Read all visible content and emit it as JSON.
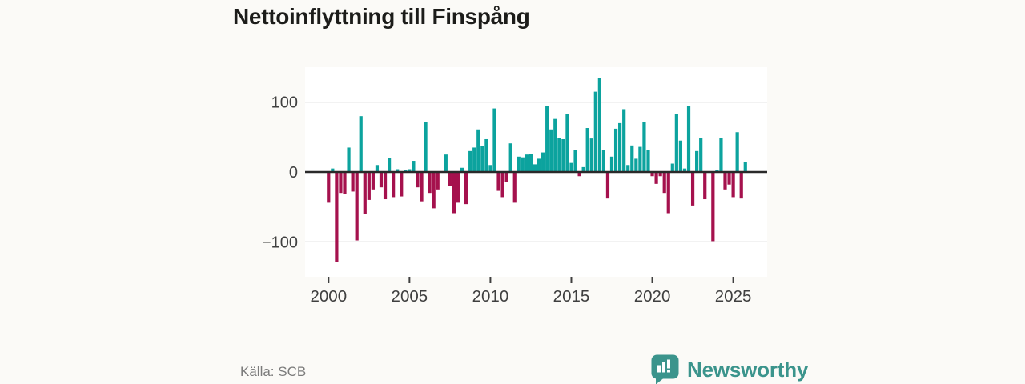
{
  "title": "Nettoinflyttning till Finspång",
  "source_label": "Källa: SCB",
  "brand": {
    "name": "Newsworthy",
    "icon": "bar-chart-speech-bubble-icon",
    "color": "#3b948c"
  },
  "colors": {
    "positive_bar": "#0ca39e",
    "negative_bar": "#a5114d",
    "gridline": "#dcdcdc",
    "zero_axis": "#2a2a2a",
    "tick_text": "#3f3f3f",
    "page_background": "#fbfaf7",
    "plot_background": "#ffffff"
  },
  "chart_data": {
    "type": "bar",
    "title": "Nettoinflyttning till Finspång",
    "x_unit": "quarter",
    "start_period": "2000 Q1",
    "end_period": "2025 Q4",
    "frequency_per_year": 4,
    "start_year": 2000,
    "x_tick_labels": [
      "2000",
      "2005",
      "2010",
      "2015",
      "2020",
      "2025"
    ],
    "y_ticks": [
      100,
      0,
      -100
    ],
    "y_tick_labels": [
      "100",
      "0",
      "−100"
    ],
    "ylim": [
      -145,
      150
    ],
    "grid": "horizontal",
    "legend": "none",
    "series": [
      {
        "name": "Nettoinflyttning",
        "values": [
          -44,
          5,
          -129,
          -30,
          -32,
          35,
          -28,
          -98,
          80,
          -60,
          -40,
          -25,
          10,
          -22,
          -39,
          20,
          -36,
          4,
          -35,
          3,
          4,
          16,
          -22,
          -42,
          72,
          -30,
          -52,
          -25,
          0,
          25,
          -20,
          -59,
          -44,
          6,
          -46,
          30,
          35,
          61,
          37,
          47,
          10,
          91,
          -27,
          -36,
          -14,
          41,
          -44,
          22,
          21,
          25,
          26,
          11,
          19,
          28,
          95,
          61,
          76,
          49,
          47,
          83,
          13,
          32,
          -6,
          7,
          63,
          48,
          115,
          135,
          32,
          -38,
          22,
          62,
          70,
          90,
          10,
          38,
          19,
          36,
          72,
          31,
          -6,
          -17,
          -6,
          -30,
          -59,
          12,
          83,
          45,
          5,
          94,
          -48,
          30,
          49,
          -39,
          0,
          -99,
          3,
          49,
          -25,
          -18,
          -36,
          57,
          -38,
          14
        ]
      }
    ]
  }
}
